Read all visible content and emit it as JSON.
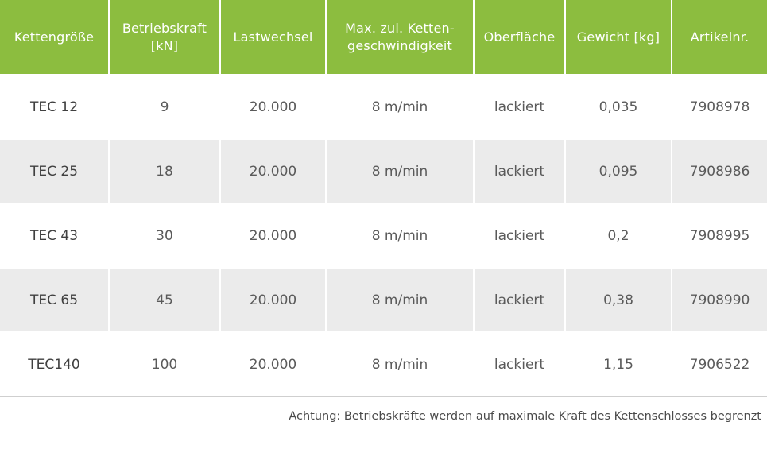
{
  "table": {
    "headers": [
      "Kettengröße",
      "Betriebskraft\n[kN]",
      "Lastwechsel",
      "Max. zul. Ketten-\ngeschwindigkeit",
      "Oberfläche",
      "Gewicht [kg]",
      "Artikelnr."
    ],
    "rows": [
      [
        "TEC 12",
        "9",
        "20.000",
        "8 m/min",
        "lackiert",
        "0,035",
        "7908978"
      ],
      [
        "TEC 25",
        "18",
        "20.000",
        "8 m/min",
        "lackiert",
        "0,095",
        "7908986"
      ],
      [
        "TEC 43",
        "30",
        "20.000",
        "8 m/min",
        "lackiert",
        "0,2",
        "7908995"
      ],
      [
        "TEC 65",
        "45",
        "20.000",
        "8 m/min",
        "lackiert",
        "0,38",
        "7908990"
      ],
      [
        "TEC140",
        "100",
        "20.000",
        "8 m/min",
        "lackiert",
        "1,15",
        "7906522"
      ]
    ]
  },
  "note": "Achtung: Betriebskräfte werden auf maximale Kraft des Kettenschlosses begrenzt",
  "colors": {
    "header_bg": "#8cbd3f",
    "header_text": "#ffffff",
    "alt_row_bg": "#ebebeb"
  }
}
